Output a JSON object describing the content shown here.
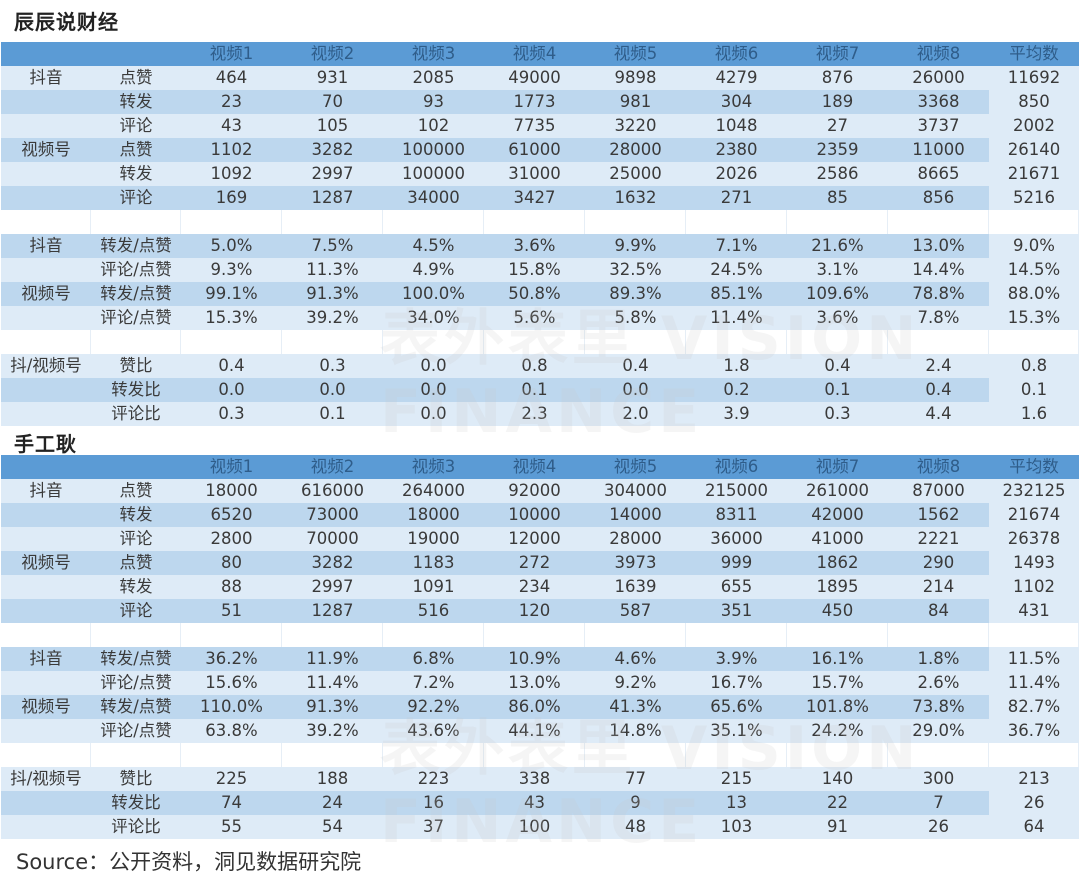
{
  "colors": {
    "header": "#5b9bd5",
    "row_dark": "#bdd7ee",
    "row_light": "#deebf7"
  },
  "watermark": "表外表里 VISION FINANCE",
  "source": "Source：公开资料，洞见数据研究院",
  "blocks": [
    {
      "title": "辰辰说财经",
      "header": [
        "",
        "",
        "视频1",
        "视频2",
        "视频3",
        "视频4",
        "视频5",
        "视频6",
        "视频7",
        "视频8",
        "平均数"
      ],
      "sections": [
        {
          "shade_start": "light",
          "rows": [
            [
              "抖音",
              "点赞",
              "464",
              "931",
              "2085",
              "49000",
              "9898",
              "4279",
              "876",
              "26000",
              "11692"
            ],
            [
              "",
              "转发",
              "23",
              "70",
              "93",
              "1773",
              "981",
              "304",
              "189",
              "3368",
              "850"
            ],
            [
              "",
              "评论",
              "43",
              "105",
              "102",
              "7735",
              "3220",
              "1048",
              "27",
              "3737",
              "2002"
            ],
            [
              "视频号",
              "点赞",
              "1102",
              "3282",
              "100000",
              "61000",
              "28000",
              "2380",
              "2359",
              "11000",
              "26140"
            ],
            [
              "",
              "转发",
              "1092",
              "2997",
              "100000",
              "31000",
              "25000",
              "2026",
              "2586",
              "8665",
              "21671"
            ],
            [
              "",
              "评论",
              "169",
              "1287",
              "34000",
              "3427",
              "1632",
              "271",
              "85",
              "856",
              "5216"
            ]
          ]
        },
        {
          "shade_start": "dark",
          "rows": [
            [
              "抖音",
              "转发/点赞",
              "5.0%",
              "7.5%",
              "4.5%",
              "3.6%",
              "9.9%",
              "7.1%",
              "21.6%",
              "13.0%",
              "9.0%"
            ],
            [
              "",
              "评论/点赞",
              "9.3%",
              "11.3%",
              "4.9%",
              "15.8%",
              "32.5%",
              "24.5%",
              "3.1%",
              "14.4%",
              "14.5%"
            ],
            [
              "视频号",
              "转发/点赞",
              "99.1%",
              "91.3%",
              "100.0%",
              "50.8%",
              "89.3%",
              "85.1%",
              "109.6%",
              "78.8%",
              "88.0%"
            ],
            [
              "",
              "评论/点赞",
              "15.3%",
              "39.2%",
              "34.0%",
              "5.6%",
              "5.8%",
              "11.4%",
              "3.6%",
              "7.8%",
              "15.3%"
            ]
          ]
        },
        {
          "shade_start": "light",
          "rows": [
            [
              "抖/视频号",
              "赞比",
              "0.4",
              "0.3",
              "0.0",
              "0.8",
              "0.4",
              "1.8",
              "0.4",
              "2.4",
              "0.8"
            ],
            [
              "",
              "转发比",
              "0.0",
              "0.0",
              "0.0",
              "0.1",
              "0.0",
              "0.2",
              "0.1",
              "0.4",
              "0.1"
            ],
            [
              "",
              "评论比",
              "0.3",
              "0.1",
              "0.0",
              "2.3",
              "2.0",
              "3.9",
              "0.3",
              "4.4",
              "1.6"
            ]
          ]
        }
      ]
    },
    {
      "title": "手工耿",
      "header": [
        "",
        "",
        "视频1",
        "视频2",
        "视频3",
        "视频4",
        "视频5",
        "视频6",
        "视频7",
        "视频8",
        "平均数"
      ],
      "sections": [
        {
          "shade_start": "light",
          "rows": [
            [
              "抖音",
              "点赞",
              "18000",
              "616000",
              "264000",
              "92000",
              "304000",
              "215000",
              "261000",
              "87000",
              "232125"
            ],
            [
              "",
              "转发",
              "6520",
              "73000",
              "18000",
              "10000",
              "14000",
              "8311",
              "42000",
              "1562",
              "21674"
            ],
            [
              "",
              "评论",
              "2800",
              "70000",
              "19000",
              "12000",
              "28000",
              "36000",
              "41000",
              "2221",
              "26378"
            ],
            [
              "视频号",
              "点赞",
              "80",
              "3282",
              "1183",
              "272",
              "3973",
              "999",
              "1862",
              "290",
              "1493"
            ],
            [
              "",
              "转发",
              "88",
              "2997",
              "1091",
              "234",
              "1639",
              "655",
              "1895",
              "214",
              "1102"
            ],
            [
              "",
              "评论",
              "51",
              "1287",
              "516",
              "120",
              "587",
              "351",
              "450",
              "84",
              "431"
            ]
          ]
        },
        {
          "shade_start": "dark",
          "rows": [
            [
              "抖音",
              "转发/点赞",
              "36.2%",
              "11.9%",
              "6.8%",
              "10.9%",
              "4.6%",
              "3.9%",
              "16.1%",
              "1.8%",
              "11.5%"
            ],
            [
              "",
              "评论/点赞",
              "15.6%",
              "11.4%",
              "7.2%",
              "13.0%",
              "9.2%",
              "16.7%",
              "15.7%",
              "2.6%",
              "11.4%"
            ],
            [
              "视频号",
              "转发/点赞",
              "110.0%",
              "91.3%",
              "92.2%",
              "86.0%",
              "41.3%",
              "65.6%",
              "101.8%",
              "73.8%",
              "82.7%"
            ],
            [
              "",
              "评论/点赞",
              "63.8%",
              "39.2%",
              "43.6%",
              "44.1%",
              "14.8%",
              "35.1%",
              "24.2%",
              "29.0%",
              "36.7%"
            ]
          ]
        },
        {
          "shade_start": "light",
          "rows": [
            [
              "抖/视频号",
              "赞比",
              "225",
              "188",
              "223",
              "338",
              "77",
              "215",
              "140",
              "300",
              "213"
            ],
            [
              "",
              "转发比",
              "74",
              "24",
              "16",
              "43",
              "9",
              "13",
              "22",
              "7",
              "26"
            ],
            [
              "",
              "评论比",
              "55",
              "54",
              "37",
              "100",
              "48",
              "103",
              "91",
              "26",
              "64"
            ]
          ]
        }
      ]
    }
  ]
}
